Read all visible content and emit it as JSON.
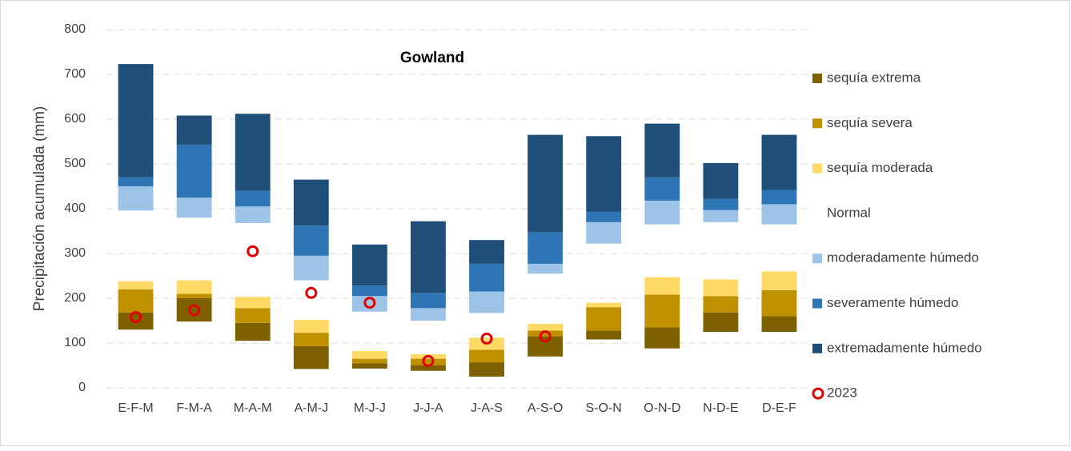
{
  "chart_data": {
    "type": "bar",
    "stacked": true,
    "title": "Gowland",
    "y_label": "Precipitación acumulada (mm)",
    "categories": [
      "E-F-M",
      "F-M-A",
      "M-A-M",
      "A-M-J",
      "M-J-J",
      "J-J-A",
      "J-A-S",
      "A-S-O",
      "S-O-N",
      "O-N-D",
      "N-D-E",
      "D-E-F"
    ],
    "series": [
      {
        "color": null,
        "values": [
          130,
          148,
          105,
          42,
          43,
          38,
          25,
          70,
          108,
          88,
          125,
          125
        ]
      },
      {
        "name": "sequía extrema",
        "color": "#7f6000",
        "values": [
          38,
          52,
          40,
          51,
          12,
          12,
          32,
          45,
          20,
          47,
          43,
          35
        ]
      },
      {
        "name": "sequía severa",
        "color": "#bf9000",
        "values": [
          52,
          10,
          33,
          30,
          10,
          15,
          28,
          13,
          52,
          73,
          37,
          58
        ]
      },
      {
        "name": "sequía moderada",
        "color": "#ffd966",
        "values": [
          18,
          30,
          25,
          29,
          17,
          10,
          27,
          15,
          10,
          39,
          37,
          42
        ]
      },
      {
        "name": "Normal",
        "color": null,
        "values": [
          158,
          140,
          165,
          88,
          88,
          75,
          55,
          112,
          132,
          118,
          128,
          105
        ]
      },
      {
        "name": "moderadamente húmedo",
        "color": "#9dc3e6",
        "values": [
          54,
          45,
          37,
          55,
          35,
          28,
          48,
          22,
          48,
          53,
          27,
          45
        ]
      },
      {
        "name": "severamente húmedo",
        "color": "#2e75b6",
        "values": [
          20,
          118,
          35,
          67,
          23,
          34,
          62,
          70,
          23,
          52,
          25,
          32
        ]
      },
      {
        "name": "extremadamente húmedo",
        "color": "#1f4e79",
        "values": [
          253,
          65,
          172,
          103,
          92,
          160,
          53,
          218,
          169,
          120,
          80,
          123
        ]
      },
      {
        "name": "2023",
        "type": "scatter",
        "color": "#e00000",
        "values": [
          158,
          173,
          305,
          212,
          190,
          60,
          110,
          115,
          null,
          null,
          null,
          null
        ]
      }
    ],
    "ylim": [
      0,
      800
    ],
    "yticks": [
      0,
      100,
      200,
      300,
      400,
      500,
      600,
      700,
      800
    ],
    "grid": true,
    "legend": "right"
  }
}
